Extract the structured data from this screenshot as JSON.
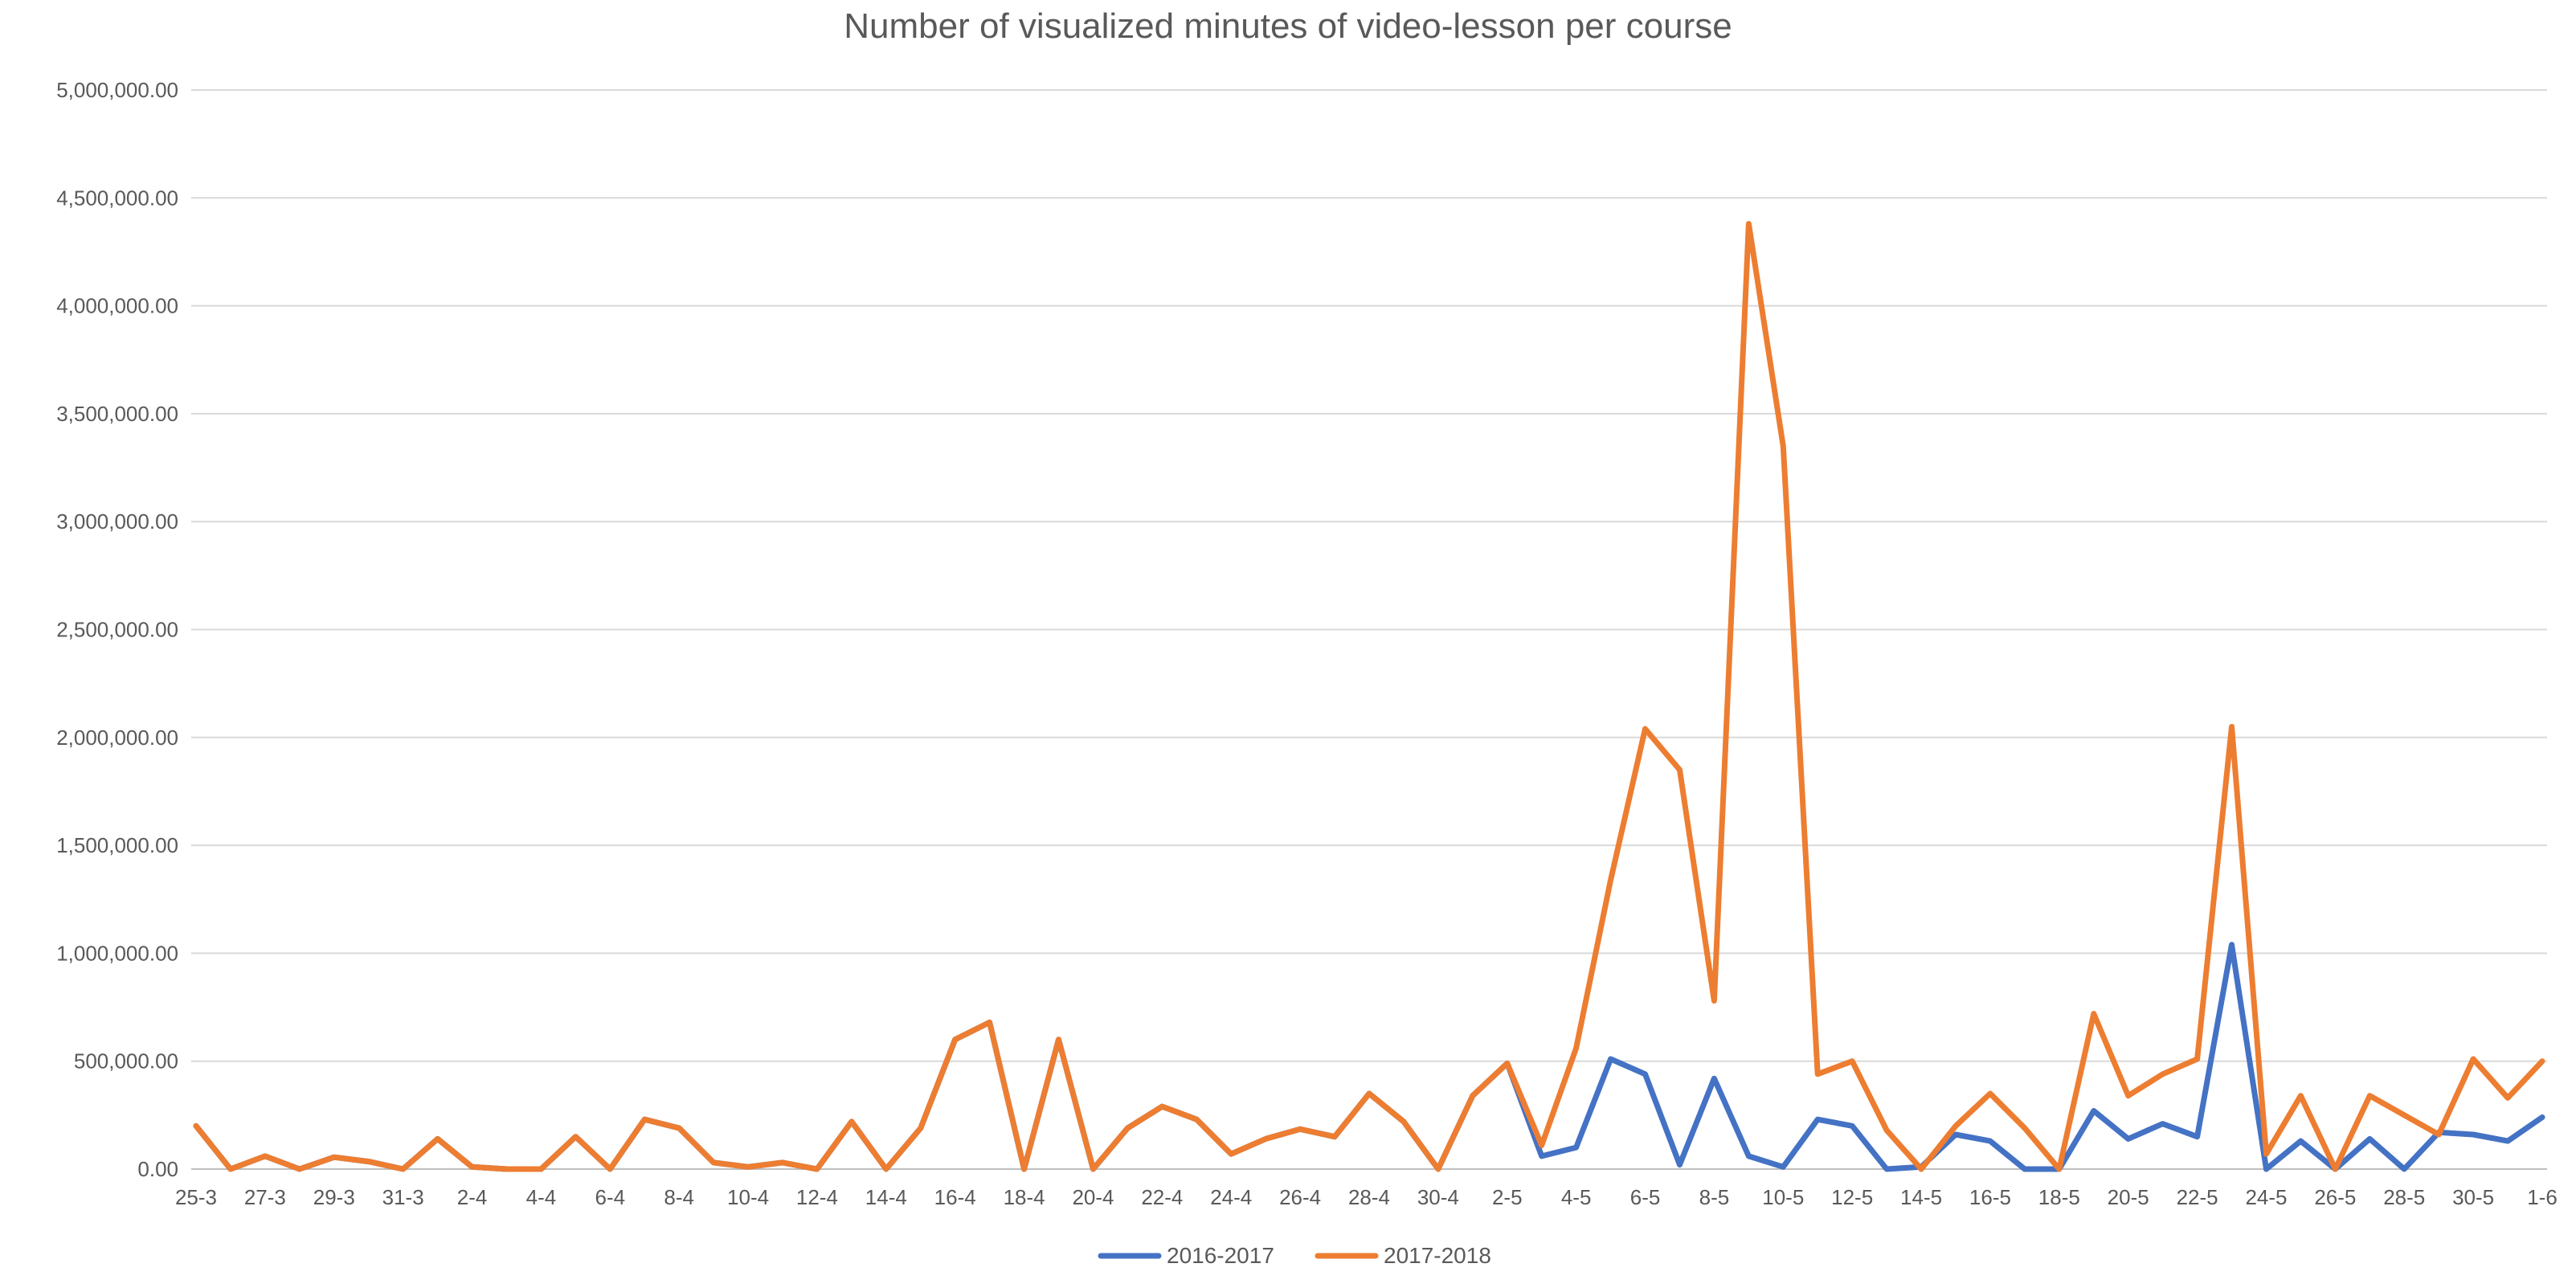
{
  "chart_data": {
    "type": "line",
    "title": "Number of visualized minutes of video-lesson per course",
    "xlabel": "",
    "ylabel": "",
    "ylim": [
      0,
      5000000
    ],
    "yticks": [
      0,
      500000,
      1000000,
      1500000,
      2000000,
      2500000,
      3000000,
      3500000,
      4000000,
      4500000,
      5000000
    ],
    "ytick_labels": [
      "0.00",
      "500,000.00",
      "1,000,000.00",
      "1,500,000.00",
      "2,000,000.00",
      "2,500,000.00",
      "3,000,000.00",
      "3,500,000.00",
      "4,000,000.00",
      "4,500,000.00",
      "5,000,000.00"
    ],
    "grid": "horizontal",
    "legend": "bottom-center",
    "x": [
      "25-3",
      "26-3",
      "27-3",
      "28-3",
      "29-3",
      "30-3",
      "31-3",
      "1-4",
      "2-4",
      "3-4",
      "4-4",
      "5-4",
      "6-4",
      "7-4",
      "8-4",
      "9-4",
      "10-4",
      "11-4",
      "12-4",
      "13-4",
      "14-4",
      "15-4",
      "16-4",
      "17-4",
      "18-4",
      "19-4",
      "20-4",
      "21-4",
      "22-4",
      "23-4",
      "24-4",
      "25-4",
      "26-4",
      "27-4",
      "28-4",
      "29-4",
      "30-4",
      "1-5",
      "2-5",
      "3-5",
      "4-5",
      "5-5",
      "6-5",
      "7-5",
      "8-5",
      "9-5",
      "10-5",
      "11-5",
      "12-5",
      "13-5",
      "14-5",
      "15-5",
      "16-5",
      "17-5",
      "18-5",
      "19-5",
      "20-5",
      "21-5",
      "22-5",
      "23-5",
      "24-5",
      "25-5",
      "26-5",
      "27-5",
      "28-5",
      "29-5",
      "30-5",
      "31-5",
      "1-6"
    ],
    "x_tick_labels": [
      "25-3",
      "27-3",
      "29-3",
      "31-3",
      "2-4",
      "4-4",
      "6-4",
      "8-4",
      "10-4",
      "12-4",
      "14-4",
      "16-4",
      "18-4",
      "20-4",
      "22-4",
      "24-4",
      "26-4",
      "28-4",
      "30-4",
      "2-5",
      "4-5",
      "6-5",
      "8-5",
      "10-5",
      "12-5",
      "14-5",
      "16-5",
      "18-5",
      "20-5",
      "22-5",
      "24-5",
      "26-5",
      "28-5",
      "30-5",
      "1-6"
    ],
    "series": [
      {
        "name": "2016-2017",
        "color": "#4472C4",
        "values": [
          200000,
          0,
          60000,
          0,
          55000,
          35000,
          0,
          140000,
          10000,
          0,
          0,
          150000,
          0,
          230000,
          190000,
          30000,
          10000,
          30000,
          0,
          220000,
          0,
          190000,
          600000,
          680000,
          0,
          600000,
          0,
          190000,
          290000,
          230000,
          70000,
          140000,
          185000,
          150000,
          350000,
          220000,
          0,
          340000,
          490000,
          60000,
          100000,
          510000,
          440000,
          20000,
          420000,
          60000,
          10000,
          230000,
          200000,
          0,
          10000,
          160000,
          130000,
          0,
          0,
          270000,
          140000,
          210000,
          150000,
          1040000,
          0,
          130000,
          0,
          140000,
          0,
          170000,
          160000,
          130000,
          240000
        ]
      },
      {
        "name": "2017-2018",
        "color": "#ED7D31",
        "values": [
          200000,
          0,
          60000,
          0,
          55000,
          35000,
          0,
          140000,
          10000,
          0,
          0,
          150000,
          0,
          230000,
          190000,
          30000,
          10000,
          30000,
          0,
          220000,
          0,
          190000,
          600000,
          680000,
          0,
          600000,
          0,
          190000,
          290000,
          230000,
          70000,
          140000,
          185000,
          150000,
          350000,
          220000,
          0,
          340000,
          490000,
          110000,
          560000,
          1340000,
          2040000,
          1850000,
          780000,
          4380000,
          3350000,
          440000,
          500000,
          180000,
          0,
          200000,
          350000,
          190000,
          0,
          720000,
          340000,
          440000,
          510000,
          2050000,
          70000,
          340000,
          0,
          340000,
          250000,
          160000,
          510000,
          330000,
          500000
        ]
      }
    ]
  }
}
